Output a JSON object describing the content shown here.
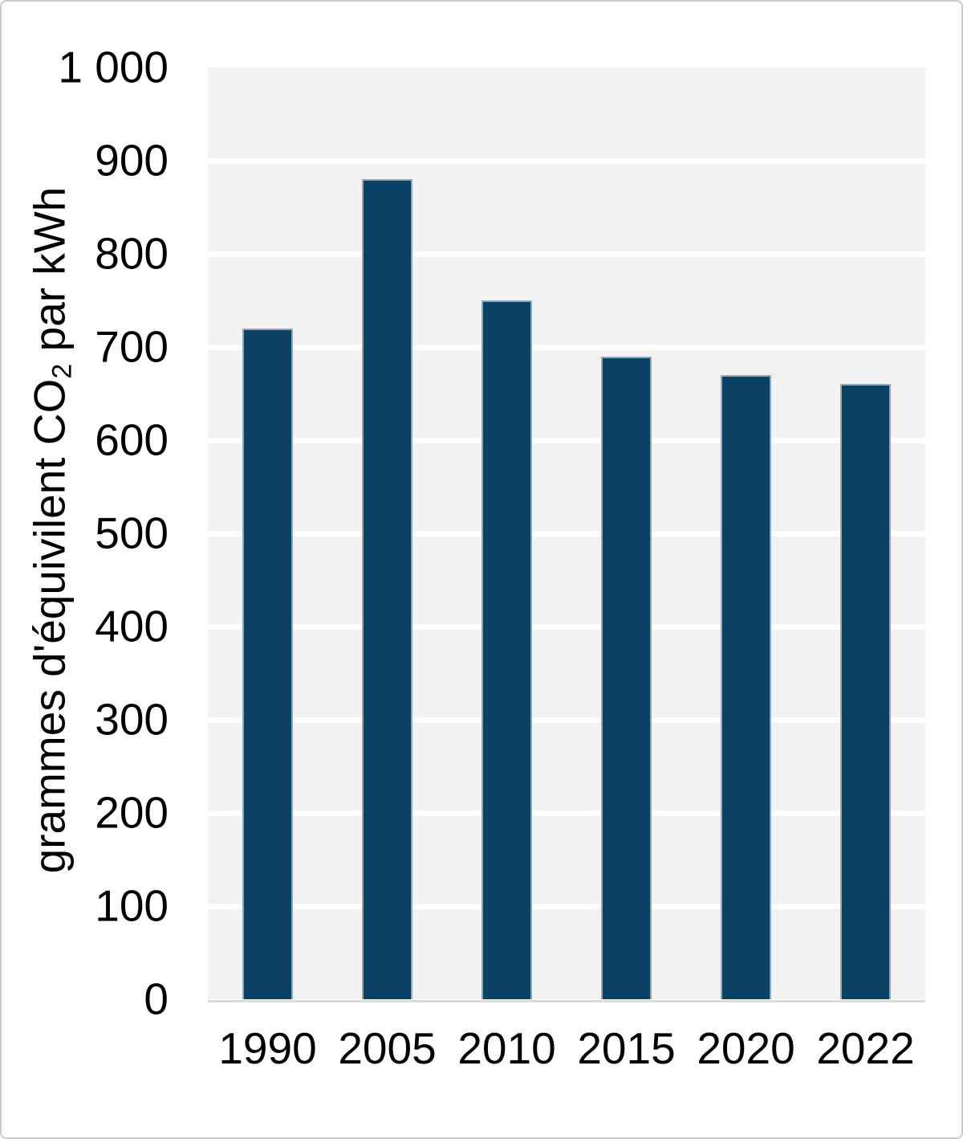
{
  "chart_data": {
    "type": "bar",
    "title": "",
    "xlabel": "",
    "ylabel": "grammes d'équivilent CO2 par kWh",
    "ylabel_parts": {
      "prefix": "grammes d'équivilent CO",
      "subscript": "2",
      "suffix": " par kWh"
    },
    "categories": [
      "1990",
      "2005",
      "2010",
      "2015",
      "2020",
      "2022"
    ],
    "values": [
      720,
      880,
      750,
      690,
      670,
      660
    ],
    "series": [
      {
        "name": "grammes d'équivilent CO2 par kWh",
        "values": [
          720,
          880,
          750,
          690,
          670,
          660
        ]
      }
    ],
    "ylim": [
      0,
      1000
    ],
    "ytick_values": [
      1000,
      900,
      800,
      700,
      600,
      500,
      400,
      300,
      200,
      100,
      0
    ],
    "ytick_labels": [
      "1 000",
      "900",
      "800",
      "700",
      "600",
      "500",
      "400",
      "300",
      "200",
      "100",
      "0"
    ],
    "grid": "on",
    "gridline_orientation": "horizontal",
    "legend": "none",
    "colors": {
      "bar_fill": "#0B4164",
      "bar_border": "#8FA7B8",
      "plot_background": "#F2F2F2",
      "gridline": "#FFFFFF",
      "axis_line": "#DCDCDC",
      "frame_border": "#C9CBCA",
      "text": "#000000",
      "page_background": "#FFFFFF"
    }
  }
}
